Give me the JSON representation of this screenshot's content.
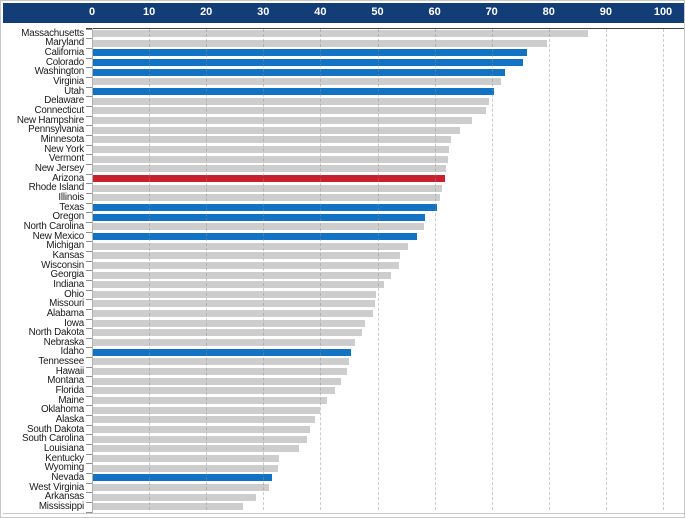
{
  "chart_data": {
    "type": "bar",
    "orientation": "horizontal",
    "title": "",
    "categories": [
      "Massachusetts",
      "Maryland",
      "California",
      "Colorado",
      "Washington",
      "Virginia",
      "Utah",
      "Delaware",
      "Connecticut",
      "New Hampshire",
      "Pennsylvania",
      "Minnesota",
      "New York",
      "Vermont",
      "New Jersey",
      "Arizona",
      "Rhode Island",
      "Illinois",
      "Texas",
      "Oregon",
      "North Carolina",
      "New Mexico",
      "Michigan",
      "Kansas",
      "Wisconsin",
      "Georgia",
      "Indiana",
      "Ohio",
      "Missouri",
      "Alabama",
      "Iowa",
      "North Dakota",
      "Nebraska",
      "Idaho",
      "Tennessee",
      "Hawaii",
      "Montana",
      "Florida",
      "Maine",
      "Oklahoma",
      "Alaska",
      "South Dakota",
      "South Carolina",
      "Louisiana",
      "Kentucky",
      "Wyoming",
      "Nevada",
      "West Virginia",
      "Arkansas",
      "Mississippi"
    ],
    "values": [
      86.7,
      79.5,
      76.0,
      75.3,
      72.2,
      71.5,
      70.2,
      69.4,
      68.8,
      66.4,
      64.3,
      62.7,
      62.3,
      62.1,
      61.8,
      61.6,
      61.1,
      60.8,
      60.2,
      58.1,
      58.0,
      56.7,
      55.2,
      53.8,
      53.6,
      52.2,
      51.0,
      49.5,
      49.4,
      49.0,
      47.6,
      47.1,
      45.9,
      45.2,
      44.8,
      44.5,
      43.4,
      42.4,
      41.0,
      39.8,
      38.9,
      38.0,
      37.4,
      36.1,
      32.6,
      32.4,
      31.3,
      30.8,
      28.5,
      26.3
    ],
    "bar_color_keys": [
      "gray",
      "gray",
      "blue",
      "blue",
      "blue",
      "gray",
      "blue",
      "gray",
      "gray",
      "gray",
      "gray",
      "gray",
      "gray",
      "gray",
      "gray",
      "red",
      "gray",
      "gray",
      "blue",
      "blue",
      "gray",
      "blue",
      "gray",
      "gray",
      "gray",
      "gray",
      "gray",
      "gray",
      "gray",
      "gray",
      "gray",
      "gray",
      "gray",
      "blue",
      "gray",
      "gray",
      "gray",
      "gray",
      "gray",
      "gray",
      "gray",
      "gray",
      "gray",
      "gray",
      "gray",
      "gray",
      "blue",
      "gray",
      "gray",
      "gray"
    ],
    "highlighted_blue_states": [
      "California",
      "Colorado",
      "Washington",
      "Utah",
      "Texas",
      "Oregon",
      "New Mexico",
      "Idaho",
      "Nevada"
    ],
    "highlighted_red_state": "Arizona",
    "x_axis": {
      "position": "top",
      "range": [
        0,
        100
      ],
      "ticks": [
        0,
        10,
        20,
        30,
        40,
        50,
        60,
        70,
        80,
        90,
        100
      ],
      "tick_labels": [
        "0",
        "10",
        "20",
        "30",
        "40",
        "50",
        "60",
        "70",
        "80",
        "90",
        "100"
      ]
    },
    "grid": "vertical-dashed",
    "legend": "none",
    "value_labels_shown": false
  },
  "colors": {
    "header_band": "#123d76",
    "header_text": "#ffffff",
    "bar_gray": "#c9c9c9",
    "bar_blue": "#1273c4",
    "bar_red": "#c9202e",
    "gridline": "#8f8f8f",
    "plot_top_line": "#3f3f3f",
    "frame": "#c8c8c8",
    "label_text": "#1a1a1a"
  }
}
